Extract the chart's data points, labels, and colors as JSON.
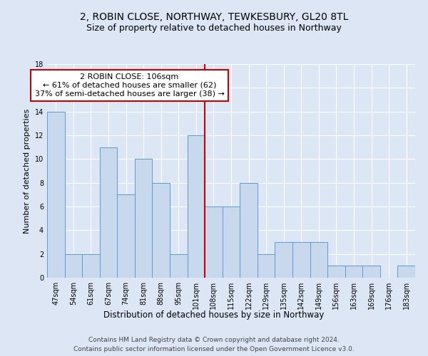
{
  "title1": "2, ROBIN CLOSE, NORTHWAY, TEWKESBURY, GL20 8TL",
  "title2": "Size of property relative to detached houses in Northway",
  "xlabel": "Distribution of detached houses by size in Northway",
  "ylabel": "Number of detached properties",
  "categories": [
    "47sqm",
    "54sqm",
    "61sqm",
    "67sqm",
    "74sqm",
    "81sqm",
    "88sqm",
    "95sqm",
    "101sqm",
    "108sqm",
    "115sqm",
    "122sqm",
    "129sqm",
    "135sqm",
    "142sqm",
    "149sqm",
    "156sqm",
    "163sqm",
    "169sqm",
    "176sqm",
    "183sqm"
  ],
  "values": [
    14,
    2,
    2,
    11,
    7,
    10,
    8,
    2,
    12,
    6,
    6,
    8,
    2,
    3,
    3,
    3,
    1,
    1,
    1,
    0,
    1
  ],
  "bar_color": "#c9d9ed",
  "bar_edge_color": "#5b9bd5",
  "property_label": "2 ROBIN CLOSE: 106sqm",
  "annotation_line1": "← 61% of detached houses are smaller (62)",
  "annotation_line2": "37% of semi-detached houses are larger (38) →",
  "vline_x_index": 8.5,
  "annotation_box_color": "#ffffff",
  "annotation_box_edge": "#cc0000",
  "vline_color": "#cc0000",
  "ylim": [
    0,
    18
  ],
  "background_color": "#dce6f5",
  "grid_color": "#ffffff",
  "footer1": "Contains HM Land Registry data © Crown copyright and database right 2024.",
  "footer2": "Contains public sector information licensed under the Open Government Licence v3.0.",
  "title1_fontsize": 10,
  "title2_fontsize": 9,
  "ylabel_fontsize": 8,
  "xlabel_fontsize": 8.5,
  "tick_fontsize": 7,
  "footer_fontsize": 6.5,
  "annot_fontsize": 8
}
